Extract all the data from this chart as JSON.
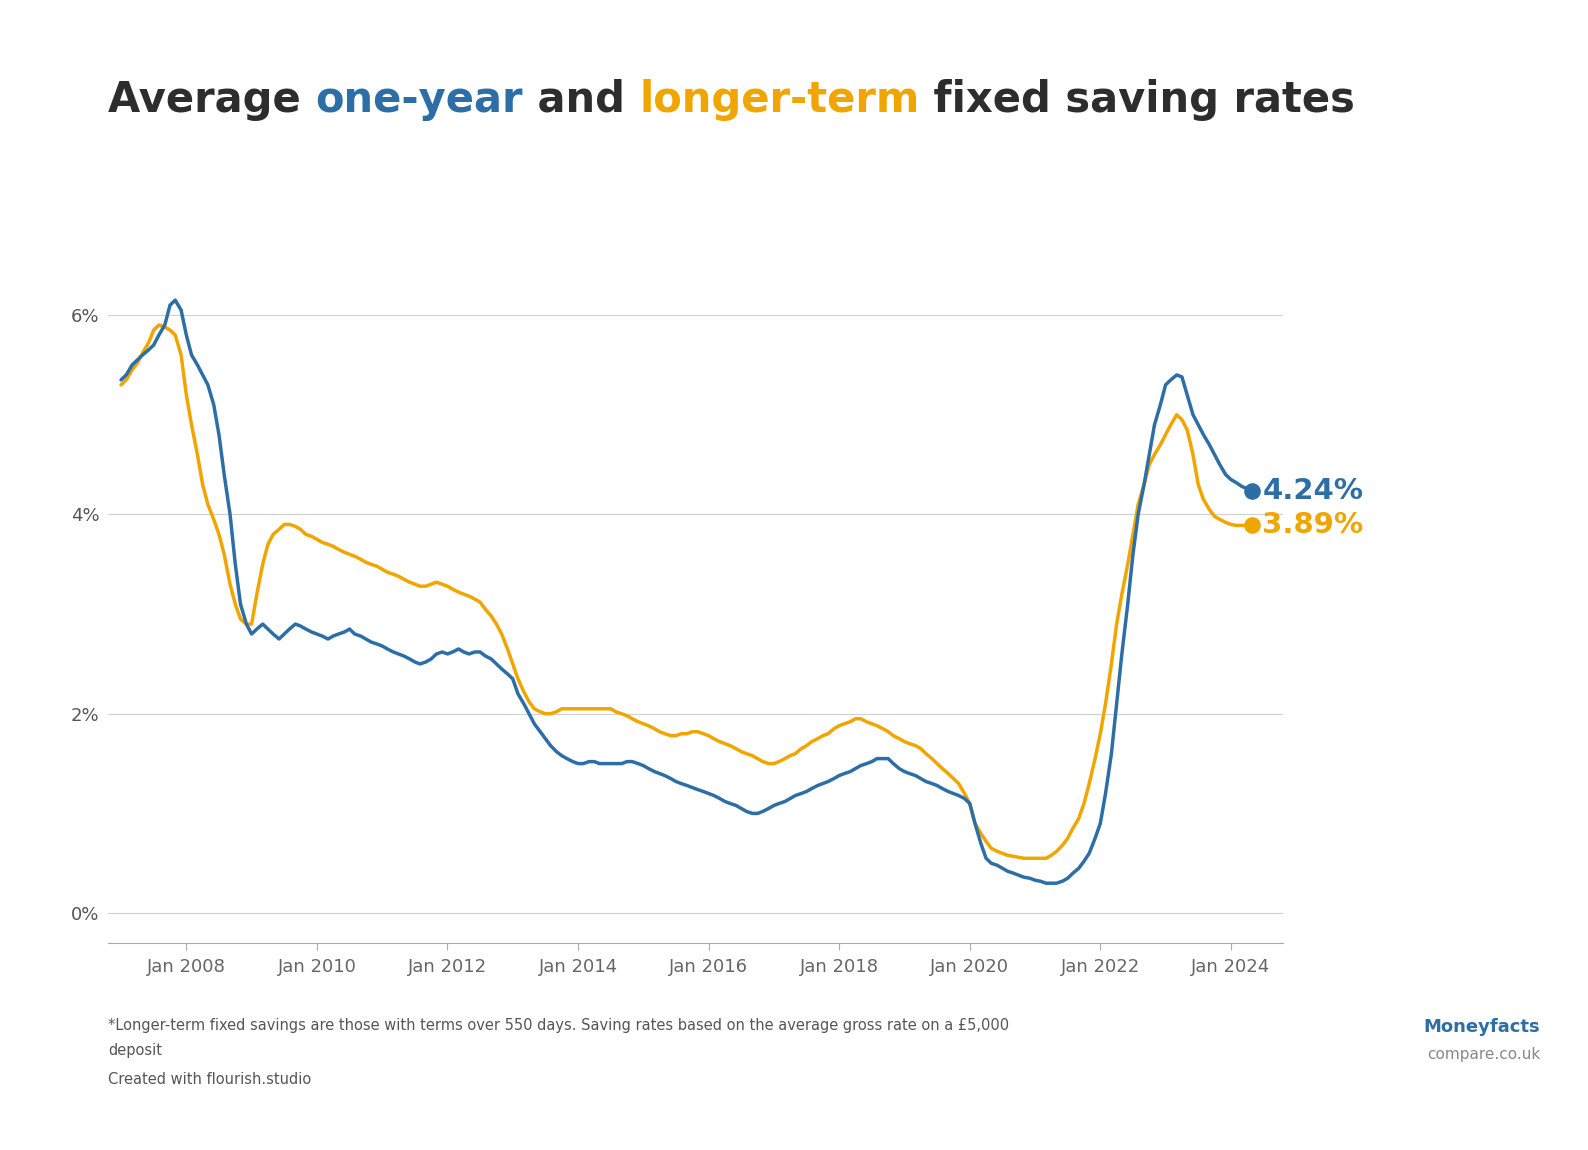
{
  "blue_color": "#2E6EA6",
  "gold_color": "#F0A500",
  "background_color": "#ffffff",
  "grid_color": "#d0d0d0",
  "yticks": [
    0,
    2,
    4,
    6
  ],
  "ylim": [
    -0.3,
    7.2
  ],
  "footnote_line1": "*Longer-term fixed savings are those with terms over 550 days. Saving rates based on the average gross rate on a £5,000",
  "footnote_line2": "deposit",
  "footnote_line3": "Created with flourish.studio",
  "moneyfacts_text1": "Moneyfacts",
  "moneyfacts_text2": "compare.co.uk",
  "end_value_blue": "4.24%",
  "end_value_gold": "3.89%",
  "title_parts": [
    {
      "text": "Average ",
      "color": "#2d2d2d"
    },
    {
      "text": "one-year",
      "color": "#2E6EA6"
    },
    {
      "text": " and ",
      "color": "#2d2d2d"
    },
    {
      "text": "longer-term",
      "color": "#F0A500"
    },
    {
      "text": " fixed saving rates",
      "color": "#2d2d2d"
    }
  ],
  "one_year_data": [
    [
      2007.0,
      5.35
    ],
    [
      2007.08,
      5.4
    ],
    [
      2007.17,
      5.5
    ],
    [
      2007.25,
      5.55
    ],
    [
      2007.33,
      5.6
    ],
    [
      2007.42,
      5.65
    ],
    [
      2007.5,
      5.7
    ],
    [
      2007.58,
      5.8
    ],
    [
      2007.67,
      5.9
    ],
    [
      2007.75,
      6.1
    ],
    [
      2007.83,
      6.15
    ],
    [
      2007.92,
      6.05
    ],
    [
      2008.0,
      5.8
    ],
    [
      2008.08,
      5.6
    ],
    [
      2008.17,
      5.5
    ],
    [
      2008.25,
      5.4
    ],
    [
      2008.33,
      5.3
    ],
    [
      2008.42,
      5.1
    ],
    [
      2008.5,
      4.8
    ],
    [
      2008.58,
      4.4
    ],
    [
      2008.67,
      4.0
    ],
    [
      2008.75,
      3.5
    ],
    [
      2008.83,
      3.1
    ],
    [
      2008.92,
      2.9
    ],
    [
      2009.0,
      2.8
    ],
    [
      2009.08,
      2.85
    ],
    [
      2009.17,
      2.9
    ],
    [
      2009.25,
      2.85
    ],
    [
      2009.33,
      2.8
    ],
    [
      2009.42,
      2.75
    ],
    [
      2009.5,
      2.8
    ],
    [
      2009.58,
      2.85
    ],
    [
      2009.67,
      2.9
    ],
    [
      2009.75,
      2.88
    ],
    [
      2009.83,
      2.85
    ],
    [
      2009.92,
      2.82
    ],
    [
      2010.0,
      2.8
    ],
    [
      2010.08,
      2.78
    ],
    [
      2010.17,
      2.75
    ],
    [
      2010.25,
      2.78
    ],
    [
      2010.33,
      2.8
    ],
    [
      2010.42,
      2.82
    ],
    [
      2010.5,
      2.85
    ],
    [
      2010.58,
      2.8
    ],
    [
      2010.67,
      2.78
    ],
    [
      2010.75,
      2.75
    ],
    [
      2010.83,
      2.72
    ],
    [
      2010.92,
      2.7
    ],
    [
      2011.0,
      2.68
    ],
    [
      2011.08,
      2.65
    ],
    [
      2011.17,
      2.62
    ],
    [
      2011.25,
      2.6
    ],
    [
      2011.33,
      2.58
    ],
    [
      2011.42,
      2.55
    ],
    [
      2011.5,
      2.52
    ],
    [
      2011.58,
      2.5
    ],
    [
      2011.67,
      2.52
    ],
    [
      2011.75,
      2.55
    ],
    [
      2011.83,
      2.6
    ],
    [
      2011.92,
      2.62
    ],
    [
      2012.0,
      2.6
    ],
    [
      2012.08,
      2.62
    ],
    [
      2012.17,
      2.65
    ],
    [
      2012.25,
      2.62
    ],
    [
      2012.33,
      2.6
    ],
    [
      2012.42,
      2.62
    ],
    [
      2012.5,
      2.62
    ],
    [
      2012.58,
      2.58
    ],
    [
      2012.67,
      2.55
    ],
    [
      2012.75,
      2.5
    ],
    [
      2012.83,
      2.45
    ],
    [
      2012.92,
      2.4
    ],
    [
      2013.0,
      2.35
    ],
    [
      2013.08,
      2.2
    ],
    [
      2013.17,
      2.1
    ],
    [
      2013.25,
      2.0
    ],
    [
      2013.33,
      1.9
    ],
    [
      2013.42,
      1.82
    ],
    [
      2013.5,
      1.75
    ],
    [
      2013.58,
      1.68
    ],
    [
      2013.67,
      1.62
    ],
    [
      2013.75,
      1.58
    ],
    [
      2013.83,
      1.55
    ],
    [
      2013.92,
      1.52
    ],
    [
      2014.0,
      1.5
    ],
    [
      2014.08,
      1.5
    ],
    [
      2014.17,
      1.52
    ],
    [
      2014.25,
      1.52
    ],
    [
      2014.33,
      1.5
    ],
    [
      2014.42,
      1.5
    ],
    [
      2014.5,
      1.5
    ],
    [
      2014.58,
      1.5
    ],
    [
      2014.67,
      1.5
    ],
    [
      2014.75,
      1.52
    ],
    [
      2014.83,
      1.52
    ],
    [
      2014.92,
      1.5
    ],
    [
      2015.0,
      1.48
    ],
    [
      2015.08,
      1.45
    ],
    [
      2015.17,
      1.42
    ],
    [
      2015.25,
      1.4
    ],
    [
      2015.33,
      1.38
    ],
    [
      2015.42,
      1.35
    ],
    [
      2015.5,
      1.32
    ],
    [
      2015.58,
      1.3
    ],
    [
      2015.67,
      1.28
    ],
    [
      2015.75,
      1.26
    ],
    [
      2015.83,
      1.24
    ],
    [
      2015.92,
      1.22
    ],
    [
      2016.0,
      1.2
    ],
    [
      2016.08,
      1.18
    ],
    [
      2016.17,
      1.15
    ],
    [
      2016.25,
      1.12
    ],
    [
      2016.33,
      1.1
    ],
    [
      2016.42,
      1.08
    ],
    [
      2016.5,
      1.05
    ],
    [
      2016.58,
      1.02
    ],
    [
      2016.67,
      1.0
    ],
    [
      2016.75,
      1.0
    ],
    [
      2016.83,
      1.02
    ],
    [
      2016.92,
      1.05
    ],
    [
      2017.0,
      1.08
    ],
    [
      2017.08,
      1.1
    ],
    [
      2017.17,
      1.12
    ],
    [
      2017.25,
      1.15
    ],
    [
      2017.33,
      1.18
    ],
    [
      2017.42,
      1.2
    ],
    [
      2017.5,
      1.22
    ],
    [
      2017.58,
      1.25
    ],
    [
      2017.67,
      1.28
    ],
    [
      2017.75,
      1.3
    ],
    [
      2017.83,
      1.32
    ],
    [
      2017.92,
      1.35
    ],
    [
      2018.0,
      1.38
    ],
    [
      2018.08,
      1.4
    ],
    [
      2018.17,
      1.42
    ],
    [
      2018.25,
      1.45
    ],
    [
      2018.33,
      1.48
    ],
    [
      2018.42,
      1.5
    ],
    [
      2018.5,
      1.52
    ],
    [
      2018.58,
      1.55
    ],
    [
      2018.67,
      1.55
    ],
    [
      2018.75,
      1.55
    ],
    [
      2018.83,
      1.5
    ],
    [
      2018.92,
      1.45
    ],
    [
      2019.0,
      1.42
    ],
    [
      2019.08,
      1.4
    ],
    [
      2019.17,
      1.38
    ],
    [
      2019.25,
      1.35
    ],
    [
      2019.33,
      1.32
    ],
    [
      2019.42,
      1.3
    ],
    [
      2019.5,
      1.28
    ],
    [
      2019.58,
      1.25
    ],
    [
      2019.67,
      1.22
    ],
    [
      2019.75,
      1.2
    ],
    [
      2019.83,
      1.18
    ],
    [
      2019.92,
      1.15
    ],
    [
      2020.0,
      1.1
    ],
    [
      2020.08,
      0.9
    ],
    [
      2020.17,
      0.7
    ],
    [
      2020.25,
      0.55
    ],
    [
      2020.33,
      0.5
    ],
    [
      2020.42,
      0.48
    ],
    [
      2020.5,
      0.45
    ],
    [
      2020.58,
      0.42
    ],
    [
      2020.67,
      0.4
    ],
    [
      2020.75,
      0.38
    ],
    [
      2020.83,
      0.36
    ],
    [
      2020.92,
      0.35
    ],
    [
      2021.0,
      0.33
    ],
    [
      2021.08,
      0.32
    ],
    [
      2021.17,
      0.3
    ],
    [
      2021.25,
      0.3
    ],
    [
      2021.33,
      0.3
    ],
    [
      2021.42,
      0.32
    ],
    [
      2021.5,
      0.35
    ],
    [
      2021.58,
      0.4
    ],
    [
      2021.67,
      0.45
    ],
    [
      2021.75,
      0.52
    ],
    [
      2021.83,
      0.6
    ],
    [
      2021.92,
      0.75
    ],
    [
      2022.0,
      0.9
    ],
    [
      2022.08,
      1.2
    ],
    [
      2022.17,
      1.6
    ],
    [
      2022.25,
      2.1
    ],
    [
      2022.33,
      2.6
    ],
    [
      2022.42,
      3.1
    ],
    [
      2022.5,
      3.6
    ],
    [
      2022.58,
      4.0
    ],
    [
      2022.67,
      4.3
    ],
    [
      2022.75,
      4.6
    ],
    [
      2022.83,
      4.9
    ],
    [
      2022.92,
      5.1
    ],
    [
      2023.0,
      5.3
    ],
    [
      2023.08,
      5.35
    ],
    [
      2023.17,
      5.4
    ],
    [
      2023.25,
      5.38
    ],
    [
      2023.33,
      5.2
    ],
    [
      2023.42,
      5.0
    ],
    [
      2023.5,
      4.9
    ],
    [
      2023.58,
      4.8
    ],
    [
      2023.67,
      4.7
    ],
    [
      2023.75,
      4.6
    ],
    [
      2023.83,
      4.5
    ],
    [
      2023.92,
      4.4
    ],
    [
      2024.0,
      4.35
    ],
    [
      2024.08,
      4.32
    ],
    [
      2024.17,
      4.28
    ],
    [
      2024.25,
      4.26
    ],
    [
      2024.33,
      4.24
    ]
  ],
  "longer_term_data": [
    [
      2007.0,
      5.3
    ],
    [
      2007.08,
      5.35
    ],
    [
      2007.17,
      5.45
    ],
    [
      2007.25,
      5.52
    ],
    [
      2007.33,
      5.62
    ],
    [
      2007.42,
      5.72
    ],
    [
      2007.5,
      5.85
    ],
    [
      2007.58,
      5.9
    ],
    [
      2007.67,
      5.88
    ],
    [
      2007.75,
      5.85
    ],
    [
      2007.83,
      5.8
    ],
    [
      2007.92,
      5.6
    ],
    [
      2008.0,
      5.2
    ],
    [
      2008.08,
      4.9
    ],
    [
      2008.17,
      4.6
    ],
    [
      2008.25,
      4.3
    ],
    [
      2008.33,
      4.1
    ],
    [
      2008.42,
      3.95
    ],
    [
      2008.5,
      3.8
    ],
    [
      2008.58,
      3.6
    ],
    [
      2008.67,
      3.3
    ],
    [
      2008.75,
      3.1
    ],
    [
      2008.83,
      2.95
    ],
    [
      2008.92,
      2.9
    ],
    [
      2009.0,
      2.9
    ],
    [
      2009.08,
      3.2
    ],
    [
      2009.17,
      3.5
    ],
    [
      2009.25,
      3.7
    ],
    [
      2009.33,
      3.8
    ],
    [
      2009.42,
      3.85
    ],
    [
      2009.5,
      3.9
    ],
    [
      2009.58,
      3.9
    ],
    [
      2009.67,
      3.88
    ],
    [
      2009.75,
      3.85
    ],
    [
      2009.83,
      3.8
    ],
    [
      2009.92,
      3.78
    ],
    [
      2010.0,
      3.75
    ],
    [
      2010.08,
      3.72
    ],
    [
      2010.17,
      3.7
    ],
    [
      2010.25,
      3.68
    ],
    [
      2010.33,
      3.65
    ],
    [
      2010.42,
      3.62
    ],
    [
      2010.5,
      3.6
    ],
    [
      2010.58,
      3.58
    ],
    [
      2010.67,
      3.55
    ],
    [
      2010.75,
      3.52
    ],
    [
      2010.83,
      3.5
    ],
    [
      2010.92,
      3.48
    ],
    [
      2011.0,
      3.45
    ],
    [
      2011.08,
      3.42
    ],
    [
      2011.17,
      3.4
    ],
    [
      2011.25,
      3.38
    ],
    [
      2011.33,
      3.35
    ],
    [
      2011.42,
      3.32
    ],
    [
      2011.5,
      3.3
    ],
    [
      2011.58,
      3.28
    ],
    [
      2011.67,
      3.28
    ],
    [
      2011.75,
      3.3
    ],
    [
      2011.83,
      3.32
    ],
    [
      2011.92,
      3.3
    ],
    [
      2012.0,
      3.28
    ],
    [
      2012.08,
      3.25
    ],
    [
      2012.17,
      3.22
    ],
    [
      2012.25,
      3.2
    ],
    [
      2012.33,
      3.18
    ],
    [
      2012.42,
      3.15
    ],
    [
      2012.5,
      3.12
    ],
    [
      2012.58,
      3.05
    ],
    [
      2012.67,
      2.98
    ],
    [
      2012.75,
      2.9
    ],
    [
      2012.83,
      2.8
    ],
    [
      2012.92,
      2.65
    ],
    [
      2013.0,
      2.5
    ],
    [
      2013.08,
      2.35
    ],
    [
      2013.17,
      2.22
    ],
    [
      2013.25,
      2.12
    ],
    [
      2013.33,
      2.05
    ],
    [
      2013.42,
      2.02
    ],
    [
      2013.5,
      2.0
    ],
    [
      2013.58,
      2.0
    ],
    [
      2013.67,
      2.02
    ],
    [
      2013.75,
      2.05
    ],
    [
      2013.83,
      2.05
    ],
    [
      2013.92,
      2.05
    ],
    [
      2014.0,
      2.05
    ],
    [
      2014.08,
      2.05
    ],
    [
      2014.17,
      2.05
    ],
    [
      2014.25,
      2.05
    ],
    [
      2014.33,
      2.05
    ],
    [
      2014.42,
      2.05
    ],
    [
      2014.5,
      2.05
    ],
    [
      2014.58,
      2.02
    ],
    [
      2014.67,
      2.0
    ],
    [
      2014.75,
      1.98
    ],
    [
      2014.83,
      1.95
    ],
    [
      2014.92,
      1.92
    ],
    [
      2015.0,
      1.9
    ],
    [
      2015.08,
      1.88
    ],
    [
      2015.17,
      1.85
    ],
    [
      2015.25,
      1.82
    ],
    [
      2015.33,
      1.8
    ],
    [
      2015.42,
      1.78
    ],
    [
      2015.5,
      1.78
    ],
    [
      2015.58,
      1.8
    ],
    [
      2015.67,
      1.8
    ],
    [
      2015.75,
      1.82
    ],
    [
      2015.83,
      1.82
    ],
    [
      2015.92,
      1.8
    ],
    [
      2016.0,
      1.78
    ],
    [
      2016.08,
      1.75
    ],
    [
      2016.17,
      1.72
    ],
    [
      2016.25,
      1.7
    ],
    [
      2016.33,
      1.68
    ],
    [
      2016.42,
      1.65
    ],
    [
      2016.5,
      1.62
    ],
    [
      2016.58,
      1.6
    ],
    [
      2016.67,
      1.58
    ],
    [
      2016.75,
      1.55
    ],
    [
      2016.83,
      1.52
    ],
    [
      2016.92,
      1.5
    ],
    [
      2017.0,
      1.5
    ],
    [
      2017.08,
      1.52
    ],
    [
      2017.17,
      1.55
    ],
    [
      2017.25,
      1.58
    ],
    [
      2017.33,
      1.6
    ],
    [
      2017.42,
      1.65
    ],
    [
      2017.5,
      1.68
    ],
    [
      2017.58,
      1.72
    ],
    [
      2017.67,
      1.75
    ],
    [
      2017.75,
      1.78
    ],
    [
      2017.83,
      1.8
    ],
    [
      2017.92,
      1.85
    ],
    [
      2018.0,
      1.88
    ],
    [
      2018.08,
      1.9
    ],
    [
      2018.17,
      1.92
    ],
    [
      2018.25,
      1.95
    ],
    [
      2018.33,
      1.95
    ],
    [
      2018.42,
      1.92
    ],
    [
      2018.5,
      1.9
    ],
    [
      2018.58,
      1.88
    ],
    [
      2018.67,
      1.85
    ],
    [
      2018.75,
      1.82
    ],
    [
      2018.83,
      1.78
    ],
    [
      2018.92,
      1.75
    ],
    [
      2019.0,
      1.72
    ],
    [
      2019.08,
      1.7
    ],
    [
      2019.17,
      1.68
    ],
    [
      2019.25,
      1.65
    ],
    [
      2019.33,
      1.6
    ],
    [
      2019.42,
      1.55
    ],
    [
      2019.5,
      1.5
    ],
    [
      2019.58,
      1.45
    ],
    [
      2019.67,
      1.4
    ],
    [
      2019.75,
      1.35
    ],
    [
      2019.83,
      1.3
    ],
    [
      2019.92,
      1.2
    ],
    [
      2020.0,
      1.1
    ],
    [
      2020.08,
      0.9
    ],
    [
      2020.17,
      0.8
    ],
    [
      2020.25,
      0.72
    ],
    [
      2020.33,
      0.65
    ],
    [
      2020.42,
      0.62
    ],
    [
      2020.5,
      0.6
    ],
    [
      2020.58,
      0.58
    ],
    [
      2020.67,
      0.57
    ],
    [
      2020.75,
      0.56
    ],
    [
      2020.83,
      0.55
    ],
    [
      2020.92,
      0.55
    ],
    [
      2021.0,
      0.55
    ],
    [
      2021.08,
      0.55
    ],
    [
      2021.17,
      0.55
    ],
    [
      2021.25,
      0.58
    ],
    [
      2021.33,
      0.62
    ],
    [
      2021.42,
      0.68
    ],
    [
      2021.5,
      0.75
    ],
    [
      2021.58,
      0.85
    ],
    [
      2021.67,
      0.95
    ],
    [
      2021.75,
      1.1
    ],
    [
      2021.83,
      1.3
    ],
    [
      2021.92,
      1.55
    ],
    [
      2022.0,
      1.8
    ],
    [
      2022.08,
      2.1
    ],
    [
      2022.17,
      2.5
    ],
    [
      2022.25,
      2.9
    ],
    [
      2022.33,
      3.2
    ],
    [
      2022.42,
      3.5
    ],
    [
      2022.5,
      3.8
    ],
    [
      2022.58,
      4.1
    ],
    [
      2022.67,
      4.3
    ],
    [
      2022.75,
      4.5
    ],
    [
      2022.83,
      4.6
    ],
    [
      2022.92,
      4.7
    ],
    [
      2023.0,
      4.8
    ],
    [
      2023.08,
      4.9
    ],
    [
      2023.17,
      5.0
    ],
    [
      2023.25,
      4.95
    ],
    [
      2023.33,
      4.85
    ],
    [
      2023.42,
      4.6
    ],
    [
      2023.5,
      4.3
    ],
    [
      2023.58,
      4.15
    ],
    [
      2023.67,
      4.05
    ],
    [
      2023.75,
      3.98
    ],
    [
      2023.83,
      3.95
    ],
    [
      2023.92,
      3.92
    ],
    [
      2024.0,
      3.9
    ],
    [
      2024.08,
      3.89
    ],
    [
      2024.17,
      3.89
    ],
    [
      2024.25,
      3.89
    ],
    [
      2024.33,
      3.89
    ]
  ]
}
